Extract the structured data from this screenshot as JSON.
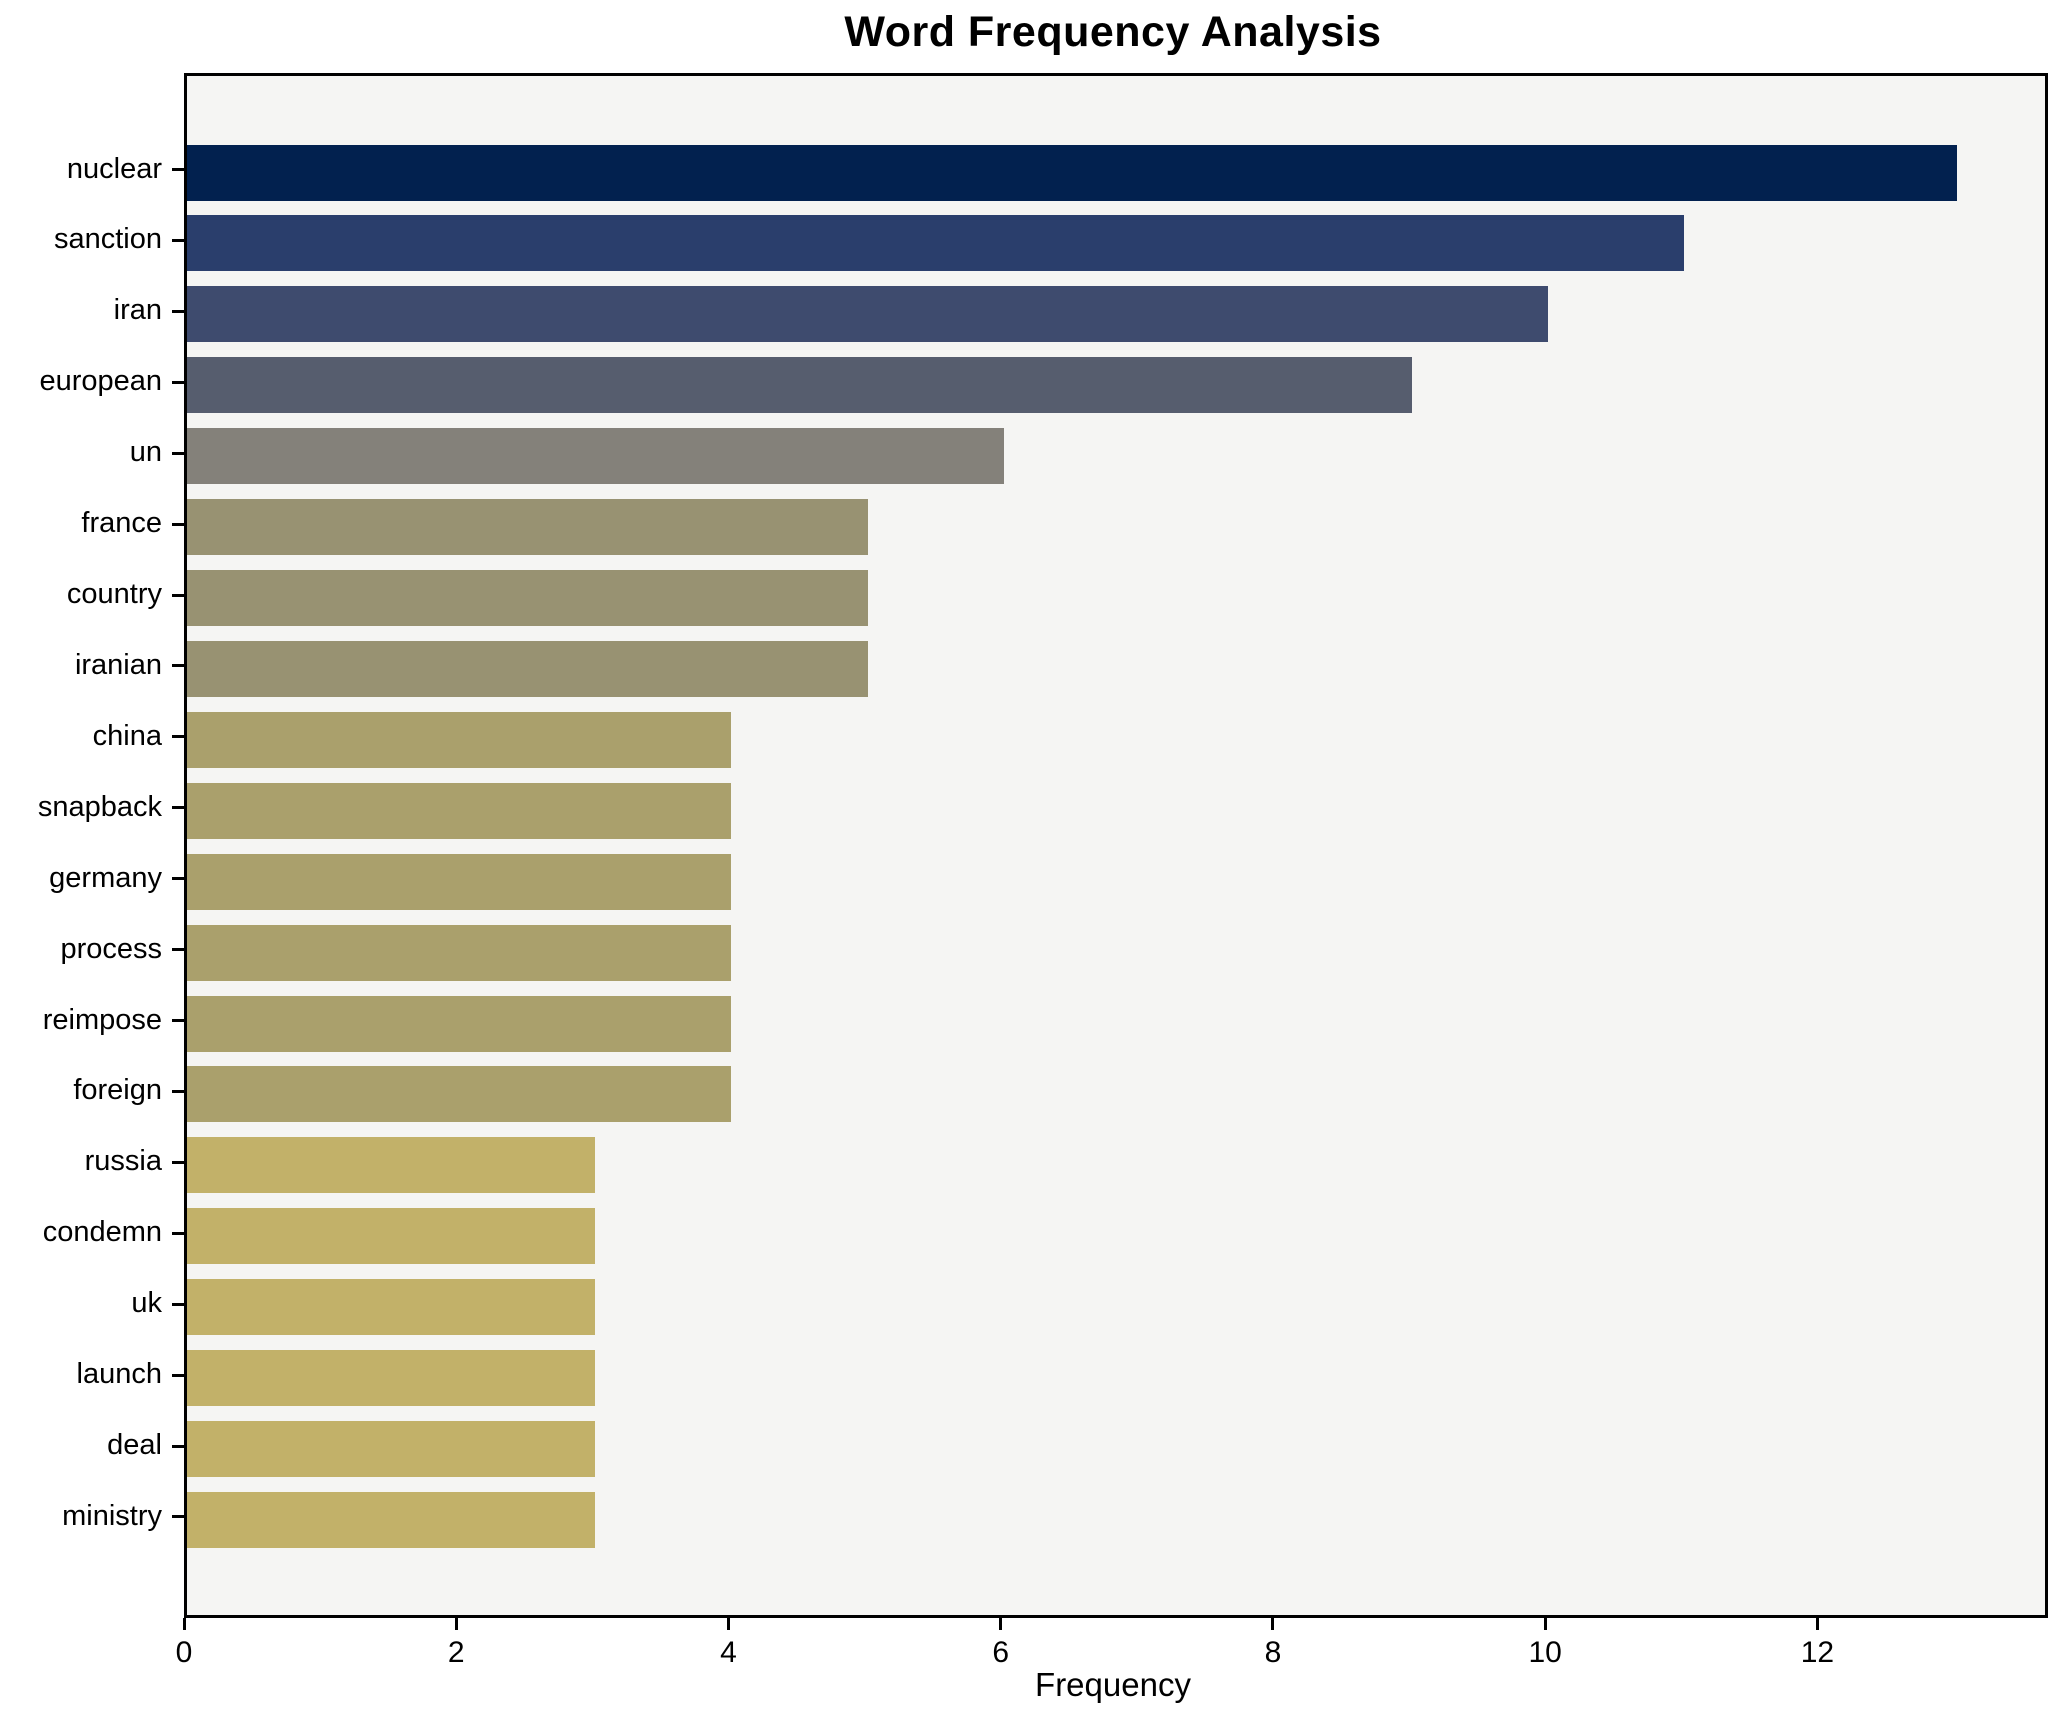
{
  "chart_data": {
    "type": "bar",
    "orientation": "horizontal",
    "title": "Word Frequency Analysis",
    "xlabel": "Frequency",
    "ylabel": "",
    "categories": [
      "nuclear",
      "sanction",
      "iran",
      "european",
      "un",
      "france",
      "country",
      "iranian",
      "china",
      "snapback",
      "germany",
      "process",
      "reimpose",
      "foreign",
      "russia",
      "condemn",
      "uk",
      "launch",
      "deal",
      "ministry"
    ],
    "values": [
      13,
      11,
      10,
      9,
      6,
      5,
      5,
      5,
      4,
      4,
      4,
      4,
      4,
      4,
      3,
      3,
      3,
      3,
      3,
      3
    ],
    "bar_colors": [
      "#02214f",
      "#2a3e6c",
      "#3e4b6e",
      "#565d6e",
      "#84817a",
      "#989272",
      "#989272",
      "#989272",
      "#aaa06c",
      "#aaa06c",
      "#aaa06c",
      "#aaa06c",
      "#aaa06c",
      "#aaa06c",
      "#c2b169",
      "#c2b169",
      "#c2b169",
      "#c2b169",
      "#c2b169",
      "#c2b169"
    ],
    "xticks": [
      0,
      2,
      4,
      6,
      8,
      10,
      12
    ],
    "xlim": [
      0,
      13.65
    ],
    "grid": false,
    "legend": "none",
    "plot_background": "#f5f5f3",
    "figure_background": "#ffffff",
    "axis_color": "#000000"
  }
}
